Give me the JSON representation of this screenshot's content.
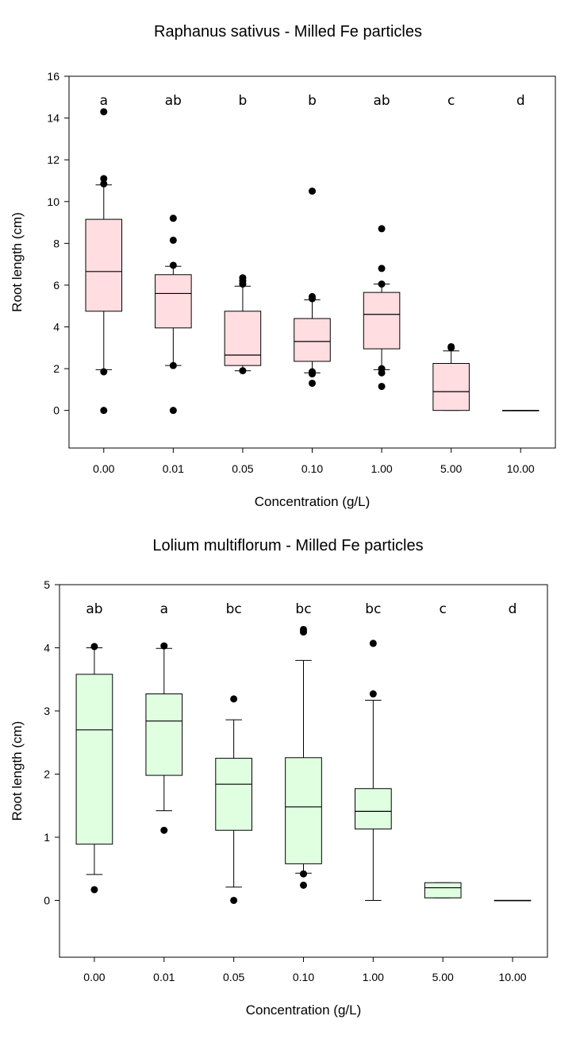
{
  "chart_data": [
    {
      "type": "box",
      "title": "Raphanus sativus - Milled Fe particles",
      "xlabel": "Concentration (g/L)",
      "ylabel": "Root length (cm)",
      "ylim": [
        -1.8,
        16
      ],
      "yticks": [
        0,
        2,
        4,
        6,
        8,
        10,
        12,
        14,
        16
      ],
      "grid": false,
      "box_color": "#ffdde1",
      "categories": [
        "0.00",
        "0.01",
        "0.05",
        "0.10",
        "1.00",
        "5.00",
        "10.00"
      ],
      "group_letters": [
        "a",
        "ab",
        "b",
        "b",
        "ab",
        "c",
        "d"
      ],
      "boxes": [
        {
          "q1": 4.75,
          "median": 6.65,
          "q3": 9.15,
          "whisker_low": 1.95,
          "whisker_high": 10.8,
          "outliers": [
            14.3,
            11.1,
            10.85,
            1.85,
            0.0
          ]
        },
        {
          "q1": 3.95,
          "median": 5.6,
          "q3": 6.5,
          "whisker_low": 2.15,
          "whisker_high": 6.9,
          "outliers": [
            9.2,
            8.15,
            6.95,
            2.15,
            0.0
          ]
        },
        {
          "q1": 2.15,
          "median": 2.65,
          "q3": 4.75,
          "whisker_low": 1.9,
          "whisker_high": 5.95,
          "outliers": [
            6.35,
            6.2,
            6.05,
            1.9
          ]
        },
        {
          "q1": 2.35,
          "median": 3.3,
          "q3": 4.4,
          "whisker_low": 1.8,
          "whisker_high": 5.3,
          "outliers": [
            10.5,
            5.45,
            5.35,
            1.85,
            1.75,
            1.3
          ]
        },
        {
          "q1": 2.95,
          "median": 4.6,
          "q3": 5.65,
          "whisker_low": 1.95,
          "whisker_high": 6.05,
          "outliers": [
            8.7,
            6.8,
            6.05,
            2.0,
            1.8,
            1.15
          ]
        },
        {
          "q1": 0.0,
          "median": 0.9,
          "q3": 2.25,
          "whisker_low": 0.0,
          "whisker_high": 2.85,
          "outliers": [
            3.05,
            3.0
          ]
        },
        {
          "q1": 0.0,
          "median": 0.0,
          "q3": 0.0,
          "whisker_low": 0.0,
          "whisker_high": 0.0,
          "outliers": []
        }
      ]
    },
    {
      "type": "box",
      "title": "Lolium multiflorum - Milled Fe particles",
      "xlabel": "Concentration (g/L)",
      "ylabel": "Root length (cm)",
      "ylim": [
        -0.9,
        5
      ],
      "yticks": [
        0,
        1,
        2,
        3,
        4,
        5
      ],
      "grid": false,
      "box_color": "#e0ffe1",
      "categories": [
        "0.00",
        "0.01",
        "0.05",
        "0.10",
        "1.00",
        "5.00",
        "10.00"
      ],
      "group_letters": [
        "ab",
        "a",
        "bc",
        "bc",
        "bc",
        "c",
        "d"
      ],
      "boxes": [
        {
          "q1": 0.89,
          "median": 2.7,
          "q3": 3.58,
          "whisker_low": 0.41,
          "whisker_high": 4.0,
          "outliers": [
            4.02,
            0.17
          ]
        },
        {
          "q1": 1.98,
          "median": 2.84,
          "q3": 3.27,
          "whisker_low": 1.42,
          "whisker_high": 3.99,
          "outliers": [
            4.03,
            1.11
          ]
        },
        {
          "q1": 1.11,
          "median": 1.84,
          "q3": 2.25,
          "whisker_low": 0.21,
          "whisker_high": 2.86,
          "outliers": [
            3.19,
            0.0
          ]
        },
        {
          "q1": 0.58,
          "median": 1.48,
          "q3": 2.26,
          "whisker_low": 0.43,
          "whisker_high": 3.8,
          "outliers": [
            4.29,
            4.25,
            0.42,
            0.24
          ]
        },
        {
          "q1": 1.13,
          "median": 1.41,
          "q3": 1.77,
          "whisker_low": 0.0,
          "whisker_high": 3.17,
          "outliers": [
            4.07,
            3.27
          ]
        },
        {
          "q1": 0.04,
          "median": 0.2,
          "q3": 0.28,
          "whisker_low": 0.04,
          "whisker_high": 0.28,
          "outliers": []
        },
        {
          "q1": 0.0,
          "median": 0.0,
          "q3": 0.0,
          "whisker_low": 0.0,
          "whisker_high": 0.0,
          "outliers": []
        }
      ]
    }
  ]
}
